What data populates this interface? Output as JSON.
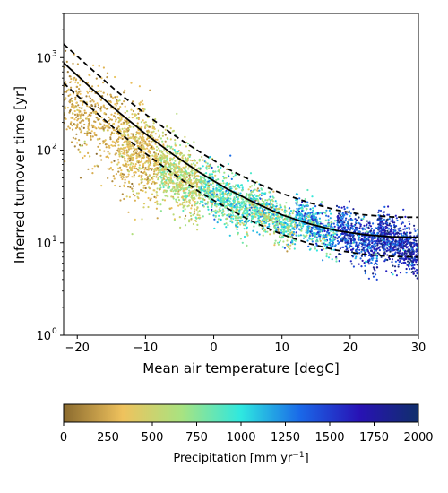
{
  "chart_data": {
    "type": "scatter",
    "xlabel": "Mean air temperature [degC]",
    "ylabel": "Inferred turnover time [yr]",
    "xlim": [
      -22,
      30
    ],
    "ylim": [
      1,
      3000
    ],
    "y_scale": "log",
    "grid": false,
    "x_ticks": [
      -20,
      -10,
      0,
      10,
      20,
      30
    ],
    "x_tick_labels": [
      "−20",
      "−10",
      "0",
      "10",
      "20",
      "30"
    ],
    "y_ticks": [
      1,
      10,
      100,
      1000
    ],
    "y_tick_labels": [
      "10",
      "10",
      "10",
      "10"
    ],
    "y_tick_exponents": [
      "0",
      "1",
      "2",
      "3"
    ],
    "fit_lines": [
      {
        "style": "solid",
        "points": [
          [
            -22,
            880
          ],
          [
            -18,
            470
          ],
          [
            -14,
            260
          ],
          [
            -10,
            150
          ],
          [
            -6,
            90
          ],
          [
            -2,
            57
          ],
          [
            2,
            38
          ],
          [
            6,
            27
          ],
          [
            10,
            20
          ],
          [
            14,
            16
          ],
          [
            18,
            13.5
          ],
          [
            22,
            12.2
          ],
          [
            26,
            11.6
          ],
          [
            30,
            11.4
          ]
        ]
      },
      {
        "style": "dashed",
        "points": [
          [
            -22,
            1400
          ],
          [
            -18,
            760
          ],
          [
            -14,
            420
          ],
          [
            -10,
            245
          ],
          [
            -6,
            148
          ],
          [
            -2,
            95
          ],
          [
            2,
            63
          ],
          [
            6,
            45
          ],
          [
            10,
            34
          ],
          [
            14,
            27
          ],
          [
            18,
            22.5
          ],
          [
            22,
            20
          ],
          [
            26,
            19
          ],
          [
            30,
            18.8
          ]
        ]
      },
      {
        "style": "dashed",
        "points": [
          [
            -22,
            530
          ],
          [
            -18,
            285
          ],
          [
            -14,
            158
          ],
          [
            -10,
            92
          ],
          [
            -6,
            56
          ],
          [
            -2,
            35
          ],
          [
            2,
            23.5
          ],
          [
            6,
            16.5
          ],
          [
            10,
            12.3
          ],
          [
            14,
            9.8
          ],
          [
            18,
            8.3
          ],
          [
            22,
            7.5
          ],
          [
            26,
            7.1
          ],
          [
            30,
            7.0
          ]
        ]
      }
    ],
    "scatter_clusters": [
      {
        "x_range": [
          -22,
          -14
        ],
        "center": [
          -15.5,
          180
        ],
        "n": 420,
        "p_mean": 250,
        "p_sd": 110,
        "spread_dex": 0.24
      },
      {
        "x_range": [
          -14,
          -8
        ],
        "center": [
          -11,
          95
        ],
        "n": 650,
        "p_mean": 340,
        "p_sd": 130,
        "spread_dex": 0.24
      },
      {
        "x_range": [
          -8,
          -2
        ],
        "center": [
          -5,
          50
        ],
        "n": 700,
        "p_mean": 560,
        "p_sd": 170,
        "spread_dex": 0.18
      },
      {
        "x_range": [
          -2,
          5
        ],
        "center": [
          1.5,
          30
        ],
        "n": 650,
        "p_mean": 820,
        "p_sd": 230,
        "spread_dex": 0.14
      },
      {
        "x_range": [
          5,
          12
        ],
        "center": [
          8.5,
          19
        ],
        "n": 600,
        "p_mean": 820,
        "p_sd": 280,
        "spread_dex": 0.11
      },
      {
        "x_range": [
          12,
          18
        ],
        "center": [
          15,
          15
        ],
        "n": 500,
        "p_mean": 1150,
        "p_sd": 300,
        "spread_dex": 0.11
      },
      {
        "x_range": [
          18,
          24
        ],
        "center": [
          21,
          11.5
        ],
        "n": 520,
        "p_mean": 1500,
        "p_sd": 250,
        "spread_dex": 0.12
      },
      {
        "x_range": [
          24,
          30
        ],
        "center": [
          26.5,
          10.5
        ],
        "n": 650,
        "p_mean": 1650,
        "p_sd": 230,
        "spread_dex": 0.13
      }
    ],
    "colorbar": {
      "label": "Precipitation [mm yr",
      "label_exponent": "−1",
      "label_suffix": "]",
      "range": [
        0,
        2000
      ],
      "ticks": [
        0,
        250,
        500,
        750,
        1000,
        1250,
        1500,
        1750,
        2000
      ],
      "tick_labels": [
        "0",
        "250",
        "500",
        "750",
        "1000",
        "1250",
        "1500",
        "1750",
        "2000"
      ],
      "colormap": [
        "#8a6a2e",
        "#efc25d",
        "#a8e381",
        "#2ee8e0",
        "#1a68e8",
        "#2812b5",
        "#102f6b"
      ]
    }
  }
}
